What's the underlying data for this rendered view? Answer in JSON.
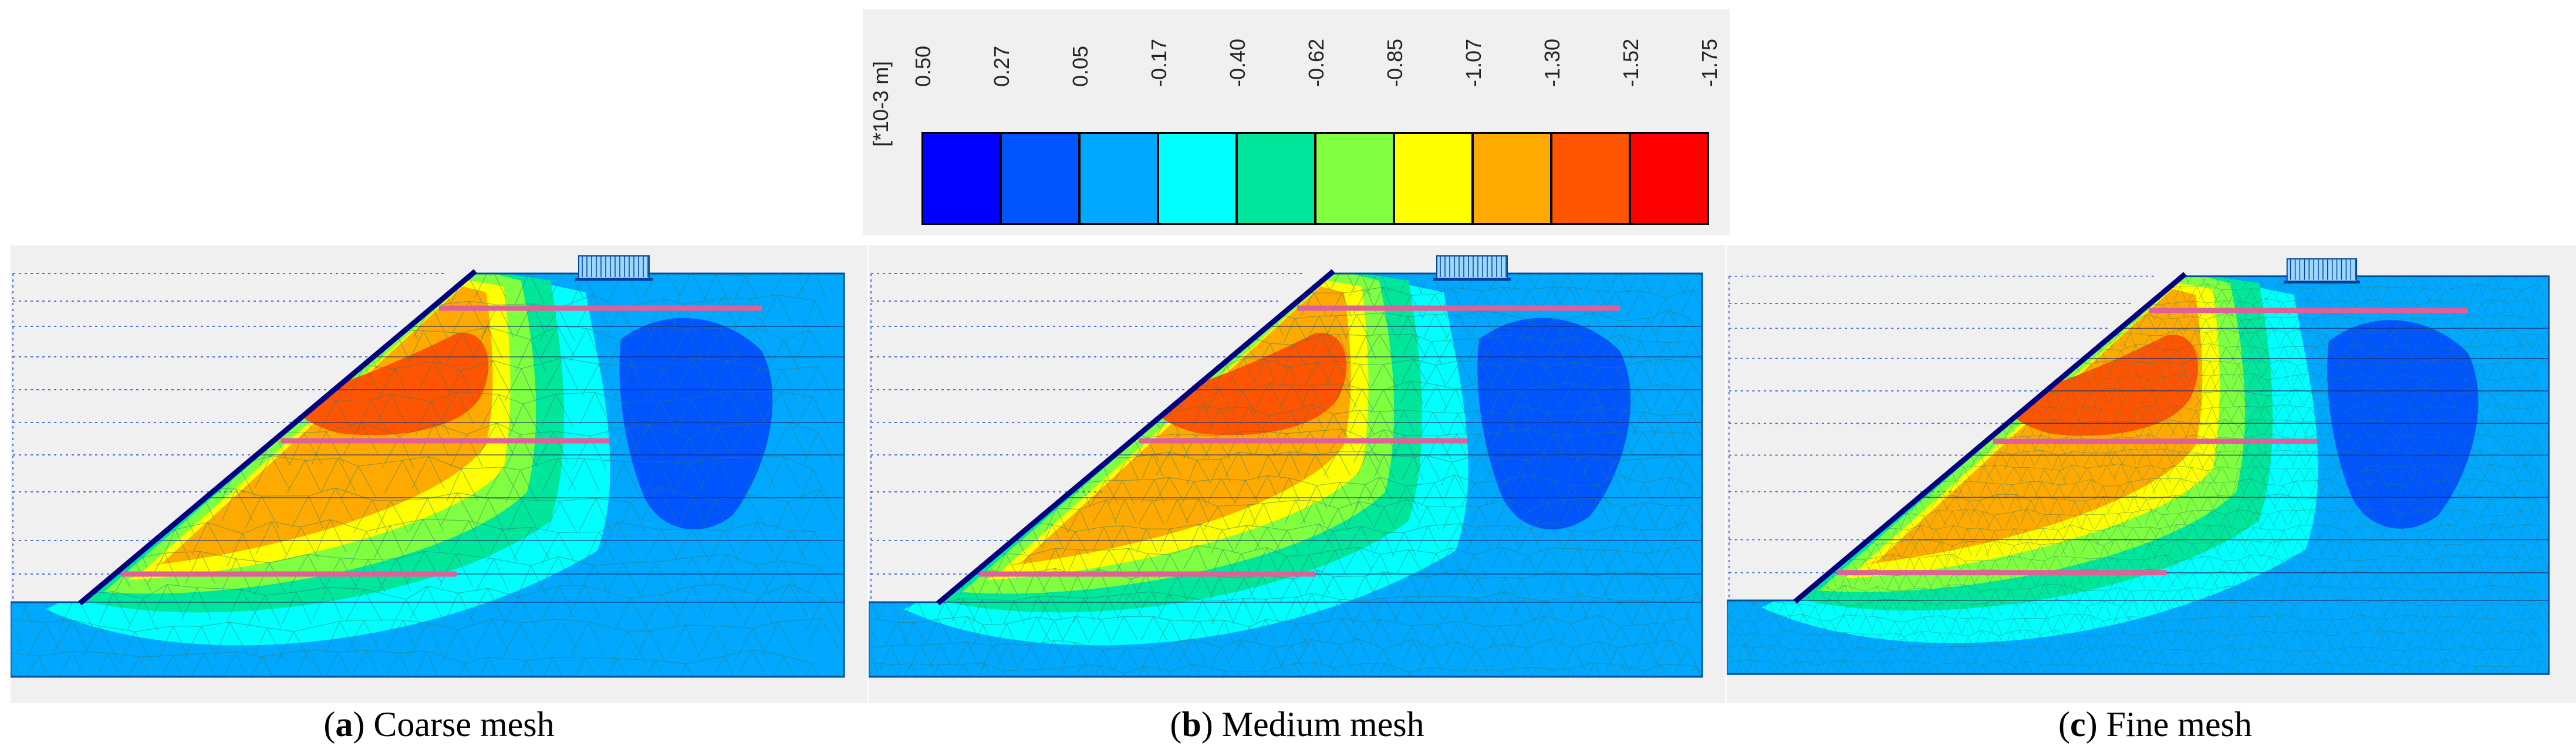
{
  "legend": {
    "unit": "[*10-3 m]",
    "ticks": [
      "0.50",
      "0.27",
      "0.05",
      "-0.17",
      "-0.40",
      "-0.62",
      "-0.85",
      "-1.07",
      "-1.30",
      "-1.52",
      "-1.75"
    ],
    "colors": [
      "#0000ff",
      "#0055ff",
      "#00a8ff",
      "#00ffff",
      "#00e69a",
      "#80ff40",
      "#ffff00",
      "#ffaa00",
      "#ff5500",
      "#ff0000"
    ]
  },
  "panels": [
    {
      "letter": "a",
      "caption": " Coarse mesh"
    },
    {
      "letter": "b",
      "caption": " Medium mesh"
    },
    {
      "letter": "c",
      "caption": " Fine mesh"
    }
  ],
  "palette": {
    "background": "#f0f0f0",
    "soil": "#00a8ff",
    "facing": "#000080",
    "reinforcement": "#e0609a",
    "mesh": "#2e7d6e"
  }
}
